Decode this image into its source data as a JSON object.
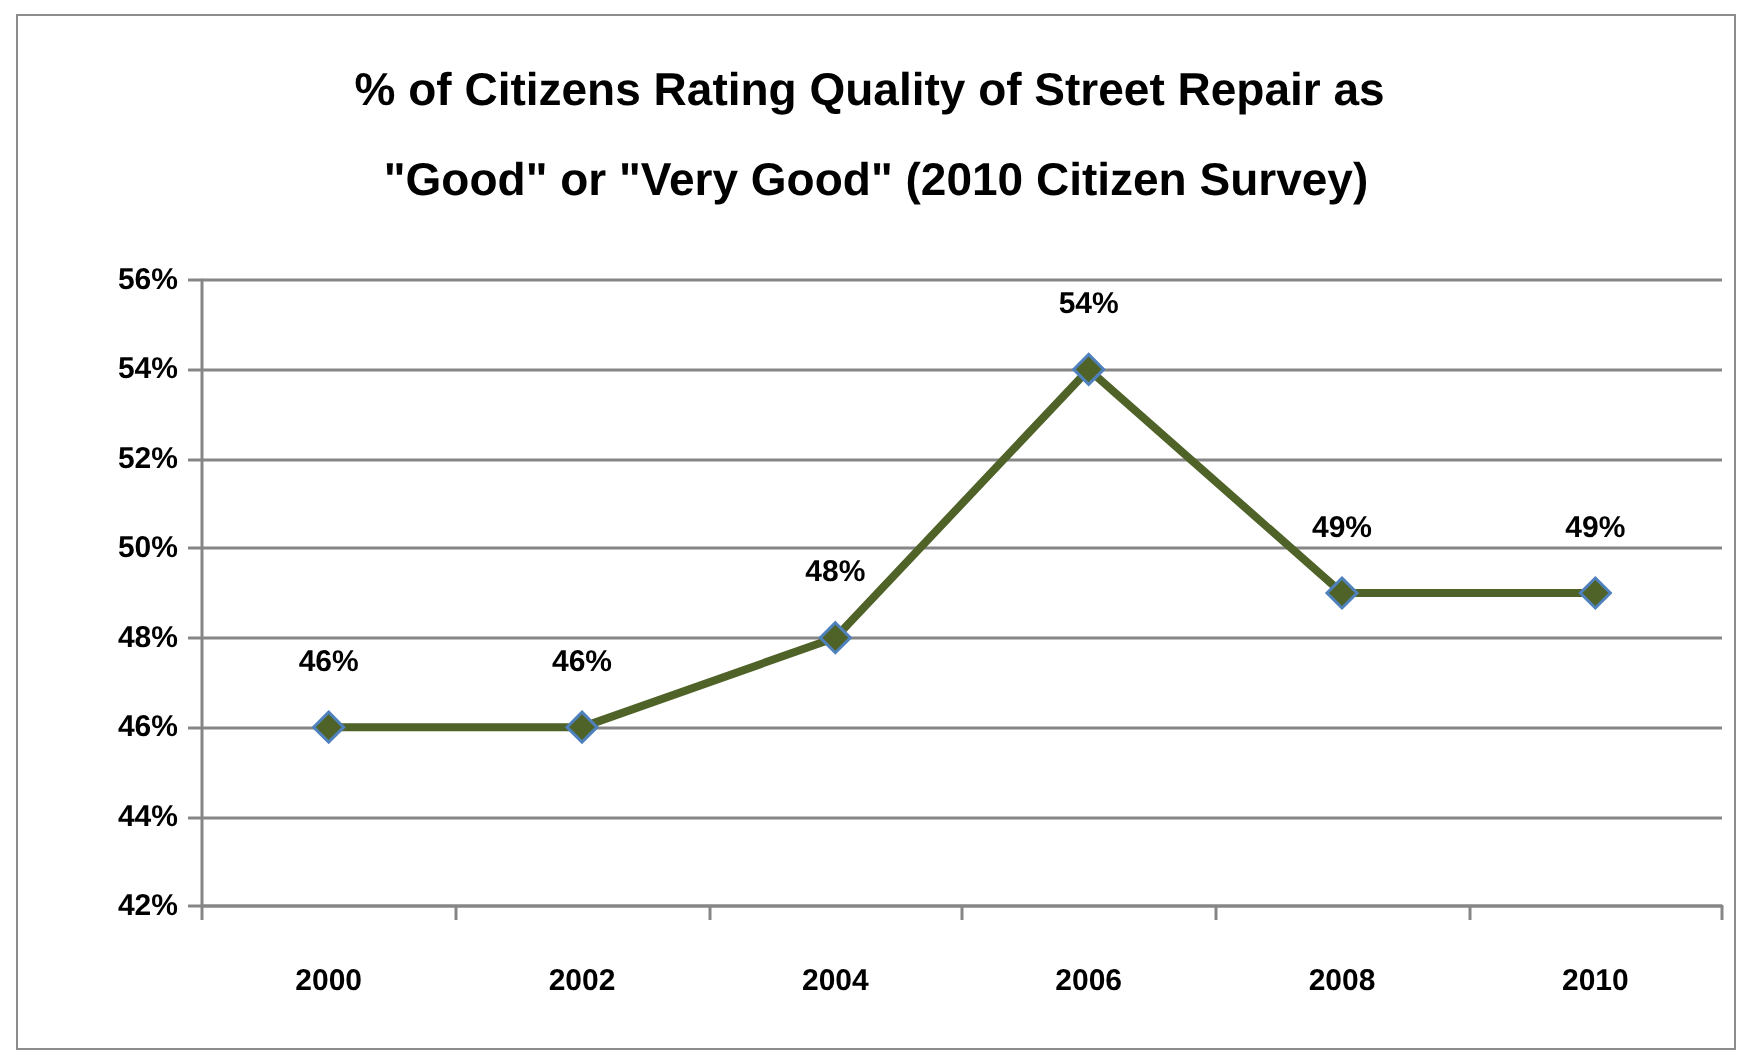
{
  "chart_data": {
    "type": "line",
    "title": "% of Citizens Rating Quality of Street Repair as \"Good\" or \"Very Good\" (2010 Citizen Survey)",
    "categories": [
      "2000",
      "2002",
      "2004",
      "2006",
      "2008",
      "2010"
    ],
    "series": [
      {
        "color": "#4f6228",
        "values": [
          46,
          46,
          48,
          54,
          49,
          49
        ],
        "value_labels": [
          "46%",
          "46%",
          "48%",
          "54%",
          "49%",
          "49%"
        ]
      }
    ],
    "ylim": [
      42,
      56
    ],
    "yticks": [
      {
        "value": 42,
        "label": "42%"
      },
      {
        "value": 44,
        "label": "44%"
      },
      {
        "value": 46,
        "label": "46%"
      },
      {
        "value": 48,
        "label": "48%"
      },
      {
        "value": 50,
        "label": "50%"
      },
      {
        "value": 52,
        "label": "52%"
      },
      {
        "value": 54,
        "label": "54%"
      },
      {
        "value": 56,
        "label": "56%"
      }
    ],
    "grid": "y",
    "marker": "diamond",
    "line_style": "solid"
  }
}
